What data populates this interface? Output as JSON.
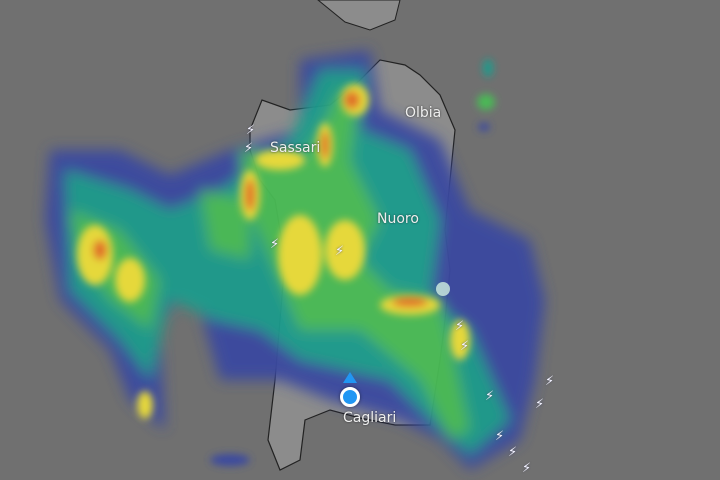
{
  "map": {
    "cities": [
      "Sassari",
      "Olbia",
      "Nuoro",
      "Cagliari"
    ],
    "layer": "radar-precipitation",
    "icons": [
      "lightning-icon",
      "location-marker-icon",
      "direction-arrow-icon"
    ],
    "colors": {
      "land": "#8a8a8a",
      "sea": "#707070",
      "light_rain": "#3a4aa0",
      "moderate": "#1f9b8c",
      "heavy": "#48bb55",
      "very_heavy": "#e6d83a",
      "extreme": "#e0702a",
      "location": "#2196f3"
    }
  }
}
